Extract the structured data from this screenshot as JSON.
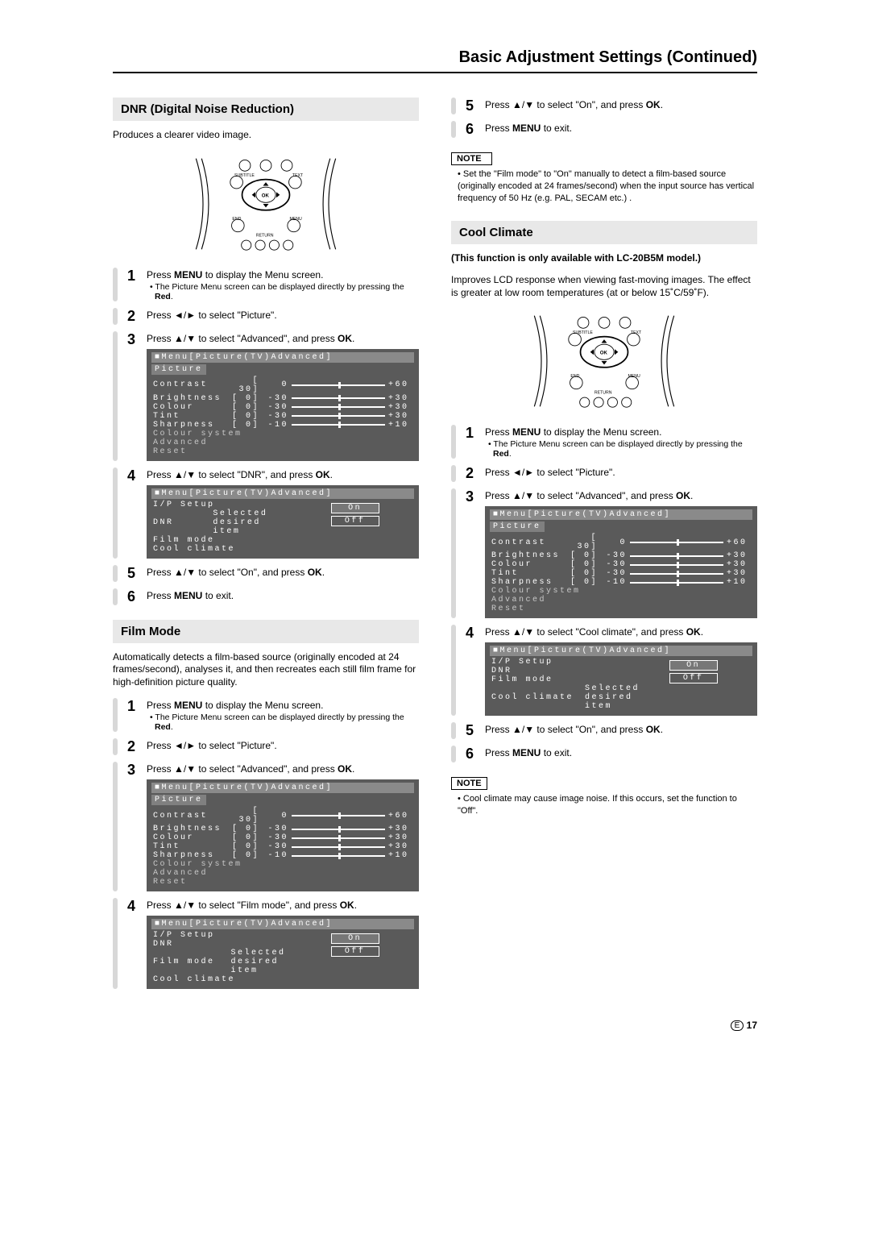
{
  "page_title": "Basic Adjustment Settings (Continued)",
  "remote_labels": {
    "subtitle": "SUBTITLE",
    "text": "TEXT",
    "ok": "OK",
    "end": "END",
    "menu": "MENU",
    "return": "RETURN"
  },
  "left": {
    "dnr": {
      "title": "DNR (Digital Noise Reduction)",
      "intro": "Produces a clearer video image.",
      "steps": [
        {
          "n": "1",
          "main": "Press <b>MENU</b> to display the Menu screen.",
          "bullet": "The Picture Menu screen can be displayed directly by pressing the <b>Red</b>."
        },
        {
          "n": "2",
          "main": "Press ◄/► to select \"Picture\"."
        },
        {
          "n": "3",
          "main": "Press ▲/▼ to select \"Advanced\", and press <b>OK</b>.",
          "osd": "picture"
        },
        {
          "n": "4",
          "main": "Press ▲/▼ to select \"DNR\", and press <b>OK</b>.",
          "osd": "advanced_dnr"
        },
        {
          "n": "5",
          "main": "Press ▲/▼ to select \"On\", and press <b>OK</b>."
        },
        {
          "n": "6",
          "main": "Press <b>MENU</b> to exit."
        }
      ]
    },
    "film": {
      "title": "Film Mode",
      "intro": "Automatically detects a film-based source (originally encoded at 24 frames/second), analyses it, and then recreates each still film frame for high-definition picture quality.",
      "steps": [
        {
          "n": "1",
          "main": "Press <b>MENU</b> to display the Menu screen.",
          "bullet": "The Picture Menu screen can be displayed directly by pressing the <b>Red</b>."
        },
        {
          "n": "2",
          "main": "Press ◄/► to select \"Picture\"."
        },
        {
          "n": "3",
          "main": "Press ▲/▼ to select \"Advanced\", and press <b>OK</b>.",
          "osd": "picture"
        },
        {
          "n": "4",
          "main": "Press ▲/▼ to select \"Film mode\", and press <b>OK</b>.",
          "osd": "advanced_film"
        }
      ]
    }
  },
  "right": {
    "top_steps": [
      {
        "n": "5",
        "main": "Press ▲/▼ to select \"On\", and press <b>OK</b>."
      },
      {
        "n": "6",
        "main": "Press <b>MENU</b> to exit."
      }
    ],
    "top_note": "Set the \"Film mode\" to \"On\" manually to detect a film-based source (originally encoded at 24 frames/second) when the input source has vertical frequency of 50 Hz (e.g. PAL, SECAM etc.) .",
    "cool": {
      "title": "Cool Climate",
      "bold_line": "(This function is only available with LC-20B5M model.)",
      "intro": "Improves LCD response when viewing fast-moving images. The effect is greater at low room temperatures (at or below 15˚C/59˚F).",
      "steps": [
        {
          "n": "1",
          "main": "Press <b>MENU</b> to display the Menu screen.",
          "bullet": "The Picture Menu screen can be displayed directly by pressing the <b>Red</b>."
        },
        {
          "n": "2",
          "main": "Press ◄/► to select \"Picture\"."
        },
        {
          "n": "3",
          "main": "Press ▲/▼ to select \"Advanced\", and press <b>OK</b>.",
          "osd": "picture"
        },
        {
          "n": "4",
          "main": "Press ▲/▼ to select \"Cool climate\", and press <b>OK</b>.",
          "osd": "advanced_cool"
        },
        {
          "n": "5",
          "main": "Press ▲/▼ to select \"On\", and press <b>OK</b>."
        },
        {
          "n": "6",
          "main": "Press <b>MENU</b> to exit."
        }
      ],
      "note": "Cool climate may cause image noise. If this occurs, set the function to \"Off\"."
    }
  },
  "osd_picture": {
    "breadcrumb": "■Menu[Picture(TV)Advanced]",
    "header": "Picture",
    "rows": [
      {
        "label": "Contrast",
        "val": "30",
        "min": "0",
        "max": "+60",
        "pos": 50
      },
      {
        "label": "Brightness",
        "val": "0",
        "min": "-30",
        "max": "+30",
        "pos": 50
      },
      {
        "label": "Colour",
        "val": "0",
        "min": "-30",
        "max": "+30",
        "pos": 50
      },
      {
        "label": "Tint",
        "val": "0",
        "min": "-30",
        "max": "+30",
        "pos": 50
      },
      {
        "label": "Sharpness",
        "val": "0",
        "min": "-10",
        "max": "+10",
        "pos": 50
      }
    ],
    "static_rows": [
      "Colour system",
      "Advanced",
      "Reset"
    ]
  },
  "osd_advanced": {
    "breadcrumb": "■Menu[Picture(TV)Advanced]",
    "items": [
      "I/P Setup",
      "DNR",
      "Film mode",
      "Cool climate"
    ],
    "hint": "Selected desired item",
    "options": [
      "On",
      "Off"
    ]
  },
  "note_label": "NOTE",
  "page_number": "17",
  "page_e": "E"
}
